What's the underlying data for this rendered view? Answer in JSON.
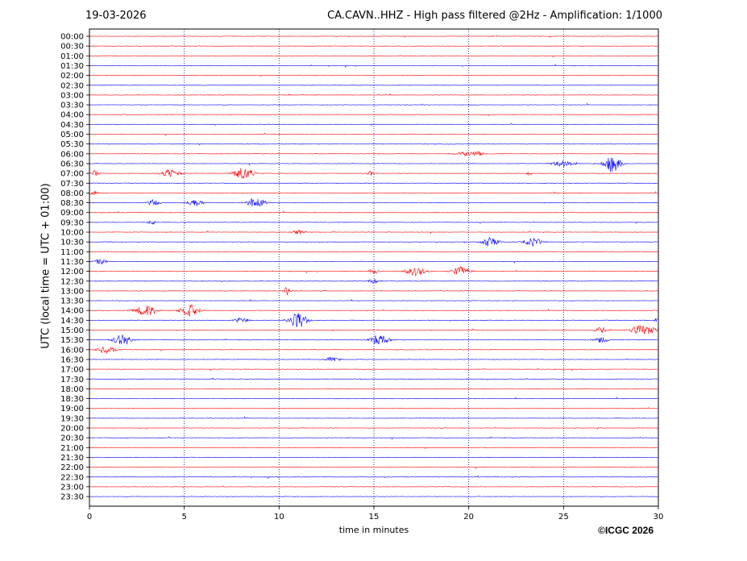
{
  "header": {
    "date": "19-03-2026",
    "title": "CA.CAVN..HHZ - High pass filtered @2Hz - Amplification: 1/1000"
  },
  "footer": {
    "copyright": "©ICGC 2026"
  },
  "colors": {
    "trace_red": "#ff0000",
    "trace_blue": "#0000ff",
    "grid": "#000080",
    "axis": "#000000"
  },
  "chart_data": {
    "type": "line",
    "title": "CA.CAVN..HHZ - High pass filtered @2Hz - Amplification: 1/1000",
    "xlabel": "time in minutes",
    "ylabel": "UTC (local time = UTC + 01:00)",
    "xlim": [
      0,
      30
    ],
    "x_ticks": [
      "0",
      "5",
      "10",
      "15",
      "20",
      "25",
      "30"
    ],
    "grid": "vertical dotted lines every 5 minutes",
    "rows": [
      "00:00",
      "00:30",
      "01:00",
      "01:30",
      "02:00",
      "02:30",
      "03:00",
      "03:30",
      "04:00",
      "04:30",
      "05:00",
      "05:30",
      "06:00",
      "06:30",
      "07:00",
      "07:30",
      "08:00",
      "08:30",
      "09:00",
      "09:30",
      "10:00",
      "10:30",
      "11:00",
      "11:30",
      "12:00",
      "12:30",
      "13:00",
      "13:30",
      "14:00",
      "14:30",
      "15:00",
      "15:30",
      "16:00",
      "16:30",
      "17:00",
      "17:30",
      "18:00",
      "18:30",
      "19:00",
      "19:30",
      "20:00",
      "20:30",
      "21:00",
      "21:30",
      "22:00",
      "22:30",
      "23:00",
      "23:30"
    ],
    "row_colors": [
      "red",
      "red",
      "red",
      "blue",
      "red",
      "blue",
      "red",
      "blue",
      "red",
      "blue",
      "red",
      "blue",
      "red",
      "blue",
      "red",
      "blue",
      "red",
      "blue",
      "red",
      "blue",
      "red",
      "blue",
      "red",
      "blue",
      "red",
      "blue",
      "red",
      "blue",
      "red",
      "blue",
      "red",
      "blue",
      "red",
      "blue",
      "red",
      "blue",
      "red",
      "blue",
      "red",
      "blue",
      "red",
      "blue",
      "red",
      "blue",
      "red",
      "blue",
      "red",
      "blue"
    ],
    "events": [
      {
        "row": "06:00",
        "minute": 19.8,
        "amplitude": 0.25,
        "duration": 1.5
      },
      {
        "row": "06:00",
        "minute": 20.5,
        "amplitude": 0.2,
        "duration": 0.8
      },
      {
        "row": "06:30",
        "minute": 25.0,
        "amplitude": 0.35,
        "duration": 1.5
      },
      {
        "row": "06:30",
        "minute": 27.6,
        "amplitude": 0.9,
        "duration": 1.2
      },
      {
        "row": "07:00",
        "minute": 0.3,
        "amplitude": 0.35,
        "duration": 0.6
      },
      {
        "row": "07:00",
        "minute": 4.3,
        "amplitude": 0.5,
        "duration": 1.2
      },
      {
        "row": "07:00",
        "minute": 8.1,
        "amplitude": 0.75,
        "duration": 1.3
      },
      {
        "row": "07:00",
        "minute": 14.8,
        "amplitude": 0.25,
        "duration": 0.4
      },
      {
        "row": "07:00",
        "minute": 23.2,
        "amplitude": 0.3,
        "duration": 0.3
      },
      {
        "row": "08:00",
        "minute": 0.2,
        "amplitude": 0.2,
        "duration": 0.8
      },
      {
        "row": "08:30",
        "minute": 3.4,
        "amplitude": 0.35,
        "duration": 0.8
      },
      {
        "row": "08:30",
        "minute": 5.6,
        "amplitude": 0.45,
        "duration": 1.0
      },
      {
        "row": "08:30",
        "minute": 8.8,
        "amplitude": 0.65,
        "duration": 1.2
      },
      {
        "row": "09:30",
        "minute": 3.3,
        "amplitude": 0.2,
        "duration": 0.6
      },
      {
        "row": "10:00",
        "minute": 11.0,
        "amplitude": 0.25,
        "duration": 1.0
      },
      {
        "row": "10:30",
        "minute": 21.1,
        "amplitude": 0.5,
        "duration": 1.3
      },
      {
        "row": "10:30",
        "minute": 23.4,
        "amplitude": 0.45,
        "duration": 1.2
      },
      {
        "row": "11:30",
        "minute": 0.6,
        "amplitude": 0.3,
        "duration": 0.8
      },
      {
        "row": "12:00",
        "minute": 17.2,
        "amplitude": 0.5,
        "duration": 1.4
      },
      {
        "row": "12:00",
        "minute": 19.6,
        "amplitude": 0.55,
        "duration": 1.2
      },
      {
        "row": "12:00",
        "minute": 15.0,
        "amplitude": 0.3,
        "duration": 0.6
      },
      {
        "row": "12:30",
        "minute": 15.0,
        "amplitude": 0.25,
        "duration": 0.8
      },
      {
        "row": "13:00",
        "minute": 10.4,
        "amplitude": 0.5,
        "duration": 0.4
      },
      {
        "row": "14:00",
        "minute": 3.0,
        "amplitude": 0.6,
        "duration": 1.5
      },
      {
        "row": "14:00",
        "minute": 5.3,
        "amplitude": 0.65,
        "duration": 1.3
      },
      {
        "row": "14:30",
        "minute": 8.0,
        "amplitude": 0.3,
        "duration": 1.0
      },
      {
        "row": "14:30",
        "minute": 11.0,
        "amplitude": 0.85,
        "duration": 1.3
      },
      {
        "row": "14:30",
        "minute": 30.0,
        "amplitude": 0.4,
        "duration": 0.5
      },
      {
        "row": "15:00",
        "minute": 29.2,
        "amplitude": 0.55,
        "duration": 1.8
      },
      {
        "row": "15:00",
        "minute": 27.0,
        "amplitude": 0.3,
        "duration": 1.0
      },
      {
        "row": "15:30",
        "minute": 1.7,
        "amplitude": 0.55,
        "duration": 1.3
      },
      {
        "row": "15:30",
        "minute": 15.3,
        "amplitude": 0.65,
        "duration": 1.2
      },
      {
        "row": "15:30",
        "minute": 27.0,
        "amplitude": 0.3,
        "duration": 1.0
      },
      {
        "row": "16:00",
        "minute": 0.9,
        "amplitude": 0.4,
        "duration": 1.3
      },
      {
        "row": "16:30",
        "minute": 12.8,
        "amplitude": 0.25,
        "duration": 1.0
      }
    ]
  }
}
